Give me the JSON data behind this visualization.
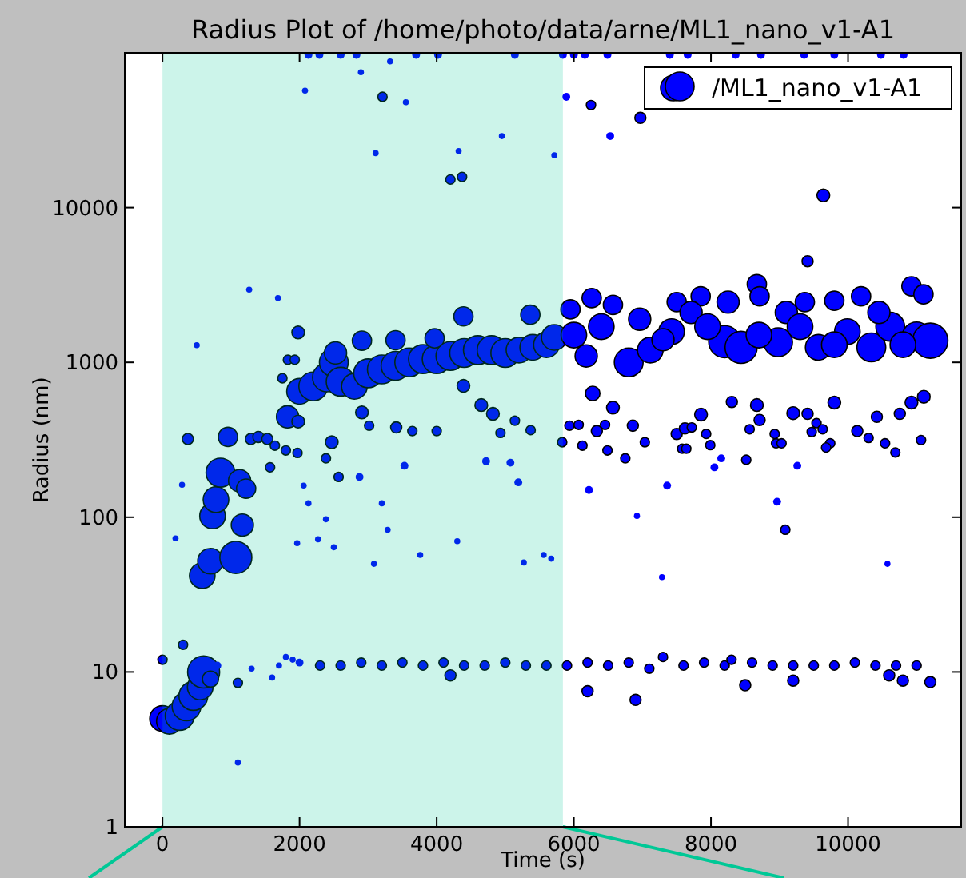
{
  "chart_data": {
    "type": "bubble",
    "title": "Radius Plot of /home/photo/data/arne/ML1_nano_v1-A1",
    "xlabel": "Time (s)",
    "ylabel": "Radius (nm)",
    "xlim": [
      -550,
      11650
    ],
    "ylim": [
      1,
      100000
    ],
    "log": true,
    "xticks": [
      0,
      2000,
      4000,
      6000,
      8000,
      10000
    ],
    "yticks": [
      1,
      10,
      100,
      1000,
      10000
    ],
    "legend": "top right",
    "marker": "circle",
    "bands": [
      {
        "axis": "x",
        "from": 0,
        "to": 5840,
        "color": "#00c896"
      }
    ],
    "series": [
      {
        "name": "/ML1_nano_v1-A1",
        "color": "#0000ff",
        "x": [
          0,
          100,
          250,
          350,
          450,
          550,
          600,
          700,
          0,
          300,
          580,
          700,
          1070,
          1165,
          730,
          780,
          845,
          1125,
          1220,
          955,
          370,
          1290,
          1400,
          1530,
          1825,
          1980,
          1640,
          1800,
          1970,
          1570,
          1980,
          1830,
          1930,
          1750,
          2000,
          2200,
          2400,
          2500,
          2600,
          2800,
          3000,
          3200,
          3400,
          3600,
          3800,
          4000,
          4200,
          4400,
          4600,
          4800,
          5000,
          5200,
          5400,
          5600,
          5715,
          2910,
          3400,
          3970,
          4390,
          5365,
          2525,
          2910,
          3015,
          3410,
          3645,
          4000,
          4390,
          4650,
          4820,
          4930,
          5140,
          5370,
          2470,
          2385,
          2570,
          2875,
          3530,
          4720,
          5075,
          5190,
          2060,
          2130,
          2385,
          3200,
          3285,
          1965,
          2270,
          2500,
          3085,
          3760,
          4300,
          5270,
          5560,
          5670,
          285,
          190,
          500,
          1265,
          1685,
          2080,
          3210,
          3550,
          2895,
          3320,
          3110,
          4320,
          4200,
          4370,
          4950,
          5715,
          5890,
          6250,
          6970,
          6530,
          9640,
          2130,
          2290,
          2600,
          2830,
          3700,
          4020,
          5140,
          5840,
          6000,
          6160,
          6490,
          7400,
          7660,
          8360,
          8730,
          9360,
          9800,
          10480,
          10810,
          6180,
          6800,
          7115,
          7425,
          8200,
          8440,
          8980,
          9565,
          9990,
          10340,
          10615,
          11000,
          11200,
          6260,
          6570,
          5950,
          7500,
          7850,
          8670,
          8710,
          9370,
          9800,
          10190,
          10925,
          11100,
          9410,
          6960,
          7710,
          8250,
          9100,
          10450,
          6000,
          6400,
          7300,
          7950,
          8700,
          9300,
          9800,
          10800,
          6275,
          6570,
          5935,
          6070,
          6335,
          6455,
          6860,
          7035,
          7500,
          7620,
          7855,
          7930,
          7720,
          8305,
          8670,
          8710,
          8565,
          8930,
          9200,
          9410,
          9540,
          9470,
          9800,
          9630,
          9740,
          10135,
          10420,
          10755,
          10925,
          11105,
          5830,
          6125,
          6490,
          6750,
          7580,
          7640,
          7990,
          8050,
          8150,
          8515,
          8950,
          9030,
          9260,
          9680,
          10300,
          10540,
          10690,
          11065,
          6220,
          6920,
          7360,
          8965,
          9085,
          10575,
          7285,
          800,
          1100,
          1100,
          1300,
          1600,
          1700,
          1800,
          1900,
          2000,
          2300,
          2600,
          2900,
          3200,
          3500,
          3800,
          4100,
          4200,
          4400,
          4700,
          5000,
          5300,
          5600,
          5900,
          6200,
          6200,
          6500,
          6800,
          6900,
          7100,
          7300,
          7600,
          7900,
          8200,
          8300,
          8500,
          8600,
          8900,
          9200,
          9200,
          9500,
          9800,
          10100,
          10400,
          10600,
          10700,
          10800,
          11000,
          11200
        ],
        "values": [
          5,
          4.8,
          5.2,
          6,
          7,
          8,
          10,
          9,
          12,
          15,
          42,
          52,
          55,
          89,
          102,
          130,
          194,
          172,
          153,
          330,
          320,
          320,
          330,
          320,
          445,
          415,
          290,
          270,
          260,
          210,
          1560,
          1040,
          1040,
          790,
          650,
          700,
          800,
          1000,
          750,
          700,
          850,
          900,
          950,
          1000,
          1050,
          1050,
          1100,
          1150,
          1200,
          1200,
          1150,
          1200,
          1250,
          1300,
          1450,
          1380,
          1390,
          1430,
          1980,
          2030,
          1150,
          475,
          390,
          380,
          360,
          360,
          705,
          530,
          465,
          350,
          420,
          365,
          305,
          240,
          182,
          182,
          215,
          230,
          225,
          168,
          160,
          123,
          97,
          123,
          83,
          68,
          72,
          64,
          50,
          57,
          70,
          51,
          57,
          54,
          162,
          73,
          1290,
          2950,
          2600,
          57000,
          52000,
          48000,
          75000,
          88000,
          22500,
          23200,
          15200,
          15800,
          29000,
          21800,
          52000,
          46000,
          38000,
          29000,
          12000,
          97000,
          97000,
          97000,
          97000,
          97000,
          97000,
          97000,
          97000,
          97000,
          97000,
          97000,
          97000,
          97000,
          97000,
          97000,
          97000,
          97000,
          97000,
          97000,
          1100,
          1000,
          1200,
          1580,
          1360,
          1250,
          1350,
          1250,
          1580,
          1250,
          1700,
          1470,
          1380,
          2600,
          2350,
          2200,
          2450,
          2670,
          3200,
          2670,
          2450,
          2500,
          2670,
          3100,
          2750,
          4500,
          1900,
          2100,
          2450,
          2100,
          2100,
          1500,
          1700,
          1400,
          1700,
          1500,
          1700,
          1300,
          1300,
          630,
          510,
          390,
          395,
          360,
          395,
          390,
          305,
          345,
          375,
          460,
          345,
          380,
          555,
          530,
          425,
          370,
          345,
          470,
          465,
          405,
          355,
          550,
          370,
          300,
          360,
          445,
          465,
          550,
          600,
          305,
          290,
          270,
          240,
          277,
          277,
          292,
          210,
          240,
          235,
          300,
          300,
          215,
          282,
          325,
          300,
          262,
          315,
          150,
          102,
          160,
          126,
          83,
          50,
          41,
          11,
          8.5,
          2.6,
          10.5,
          9.2,
          11,
          12.5,
          12,
          11.5,
          11,
          11,
          11.5,
          11,
          11.5,
          11,
          11.5,
          9.5,
          11,
          11,
          11.5,
          11,
          11,
          11,
          7.5,
          11.5,
          11,
          11.5,
          6.6,
          10.5,
          12.5,
          11,
          11.5,
          11,
          12,
          8.2,
          11.5,
          11,
          8.8,
          11,
          11,
          11,
          11.5,
          11,
          9.5,
          11,
          8.8,
          11,
          8.6
        ],
        "sizes": [
          0.53,
          0.53,
          0.67,
          0.67,
          0.67,
          0.53,
          0.83,
          0.21,
          0.07,
          0.07,
          0.53,
          0.53,
          0.83,
          0.4,
          0.53,
          0.53,
          0.67,
          0.4,
          0.3,
          0.3,
          0.1,
          0.1,
          0.1,
          0.1,
          0.4,
          0.13,
          0.07,
          0.07,
          0.07,
          0.07,
          0.13,
          0.07,
          0.07,
          0.07,
          0.53,
          0.67,
          0.67,
          0.67,
          0.67,
          0.53,
          0.67,
          0.67,
          0.67,
          0.67,
          0.67,
          0.67,
          0.67,
          0.67,
          0.67,
          0.67,
          0.67,
          0.53,
          0.53,
          0.53,
          0.53,
          0.3,
          0.3,
          0.3,
          0.3,
          0.3,
          0.4,
          0.13,
          0.07,
          0.1,
          0.07,
          0.07,
          0.13,
          0.13,
          0.13,
          0.07,
          0.07,
          0.07,
          0.13,
          0.07,
          0.07,
          0.05,
          0.05,
          0.05,
          0.05,
          0.05,
          0.03,
          0.03,
          0.03,
          0.03,
          0.03,
          0.03,
          0.03,
          0.03,
          0.03,
          0.03,
          0.03,
          0.03,
          0.03,
          0.03,
          0.03,
          0.03,
          0.03,
          0.03,
          0.03,
          0.03,
          0.07,
          0.03,
          0.03,
          0.03,
          0.03,
          0.03,
          0.07,
          0.07,
          0.03,
          0.03,
          0.05,
          0.07,
          0.1,
          0.05,
          0.13,
          0.05,
          0.05,
          0.05,
          0.05,
          0.05,
          0.05,
          0.05,
          0.05,
          0.05,
          0.05,
          0.05,
          0.05,
          0.05,
          0.05,
          0.05,
          0.05,
          0.05,
          0.05,
          0.05,
          0.4,
          0.67,
          0.53,
          0.53,
          0.83,
          0.83,
          0.67,
          0.53,
          0.53,
          0.67,
          0.67,
          0.67,
          1,
          0.3,
          0.3,
          0.3,
          0.3,
          0.3,
          0.3,
          0.3,
          0.3,
          0.3,
          0.3,
          0.3,
          0.3,
          0.1,
          0.4,
          0.4,
          0.4,
          0.4,
          0.4,
          0.53,
          0.53,
          0.4,
          0.53,
          0.53,
          0.53,
          0.53,
          0.53,
          0.17,
          0.13,
          0.07,
          0.07,
          0.1,
          0.07,
          0.1,
          0.07,
          0.1,
          0.1,
          0.13,
          0.07,
          0.07,
          0.1,
          0.13,
          0.1,
          0.07,
          0.07,
          0.13,
          0.1,
          0.07,
          0.07,
          0.13,
          0.07,
          0.07,
          0.1,
          0.1,
          0.1,
          0.13,
          0.13,
          0.07,
          0.07,
          0.07,
          0.07,
          0.07,
          0.07,
          0.07,
          0.05,
          0.05,
          0.07,
          0.07,
          0.07,
          0.05,
          0.07,
          0.07,
          0.07,
          0.07,
          0.07,
          0.05,
          0.03,
          0.05,
          0.05,
          0.07,
          0.03,
          0.03,
          0.05,
          0.07,
          0.03,
          0.03,
          0.03,
          0.03,
          0.03,
          0.03,
          0.05,
          0.07,
          0.07,
          0.07,
          0.07,
          0.07,
          0.07,
          0.07,
          0.1,
          0.07,
          0.07,
          0.07,
          0.07,
          0.07,
          0.07,
          0.1,
          0.07,
          0.07,
          0.07,
          0.1,
          0.07,
          0.07,
          0.07,
          0.07,
          0.07,
          0.07,
          0.1,
          0.07,
          0.07,
          0.1,
          0.07,
          0.07,
          0.07,
          0.07,
          0.07,
          0.1,
          0.07,
          0.1,
          0.07,
          0.1
        ]
      }
    ]
  }
}
